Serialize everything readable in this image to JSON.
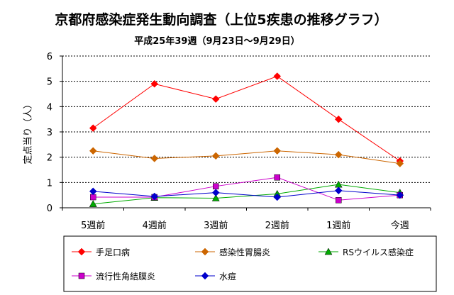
{
  "chart_data": {
    "type": "line",
    "title": "京都府感染症発生動向調査（上位5疾患の推移グラフ）",
    "subtitle": "平成25年39週（9月23日～9月29日）",
    "ylabel_chars": [
      "定",
      "点",
      "当",
      "り",
      "（",
      "人",
      "）"
    ],
    "categories": [
      "5週前",
      "4週前",
      "3週前",
      "2週前",
      "1週前",
      "今週"
    ],
    "y_ticks": [
      "0",
      "1",
      "2",
      "3",
      "4",
      "5",
      "6"
    ],
    "ylim": [
      0,
      6
    ],
    "grid": true,
    "legend_position": "bottom",
    "series": [
      {
        "name": "手足口病",
        "values": [
          3.15,
          4.9,
          4.3,
          5.2,
          3.5,
          1.85
        ],
        "color": "#ff0000",
        "marker": "diamond"
      },
      {
        "name": "感染性胃腸炎",
        "values": [
          2.25,
          1.95,
          2.05,
          2.25,
          2.1,
          1.75
        ],
        "color": "#cc6600",
        "marker": "diamond"
      },
      {
        "name": "RSウイルス感染症",
        "values": [
          0.15,
          0.4,
          0.38,
          0.55,
          0.92,
          0.6
        ],
        "color": "#00aa00",
        "marker": "triangle"
      },
      {
        "name": "流行性角結膜炎",
        "values": [
          0.42,
          0.42,
          0.85,
          1.2,
          0.3,
          0.5
        ],
        "color": "#cc00cc",
        "marker": "square"
      },
      {
        "name": "水痘",
        "values": [
          0.65,
          0.45,
          0.6,
          0.42,
          0.68,
          0.5
        ],
        "color": "#0000cc",
        "marker": "diamond"
      }
    ]
  }
}
